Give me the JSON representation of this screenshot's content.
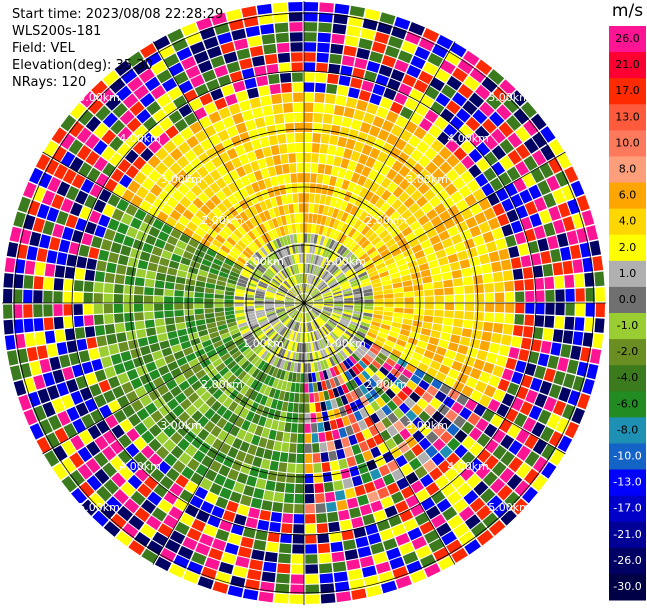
{
  "header": {
    "start_time": "Start time: 2023/08/08 22:28:29",
    "instrument": "WLS200s-181",
    "field": "Field: VEL",
    "elevation": "Elevation(deg): 35.30",
    "nrays": "NRays: 120"
  },
  "colorbar": {
    "unit": "m/s",
    "levels": [
      {
        "label": "26.0",
        "color": "#ff1493"
      },
      {
        "label": "21.0",
        "color": "#ff0033"
      },
      {
        "label": "17.0",
        "color": "#ff2a00"
      },
      {
        "label": "13.0",
        "color": "#ff5a3c"
      },
      {
        "label": "10.0",
        "color": "#ff7a5c"
      },
      {
        "label": "8.0",
        "color": "#ff9e7a"
      },
      {
        "label": "6.0",
        "color": "#ffa500"
      },
      {
        "label": "4.0",
        "color": "#ffd700"
      },
      {
        "label": "2.0",
        "color": "#ffff00"
      },
      {
        "label": "1.0",
        "color": "#b0b0b0"
      },
      {
        "label": "0.0",
        "color": "#707070"
      },
      {
        "label": "-1.0",
        "color": "#9acd32"
      },
      {
        "label": "-2.0",
        "color": "#6b8e23"
      },
      {
        "label": "-4.0",
        "color": "#3c7a1e"
      },
      {
        "label": "-6.0",
        "color": "#228b22"
      },
      {
        "label": "-8.0",
        "color": "#1e90b4"
      },
      {
        "label": "-10.0",
        "color": "#1464c8"
      },
      {
        "label": "-13.0",
        "color": "#0000ff"
      },
      {
        "label": "-17.0",
        "color": "#0000c8"
      },
      {
        "label": "-21.0",
        "color": "#000096"
      },
      {
        "label": "-26.0",
        "color": "#000064"
      },
      {
        "label": "-30.0",
        "color": "#000046"
      }
    ]
  },
  "chart_data": {
    "type": "heatmap",
    "projection": "polar PPI",
    "field": "VEL",
    "units": "m/s",
    "n_rays": 120,
    "range_rings_km": [
      1.0,
      2.0,
      3.0,
      4.0,
      5.0
    ],
    "ring_labels": [
      "1.00km",
      "2.00km",
      "3.00km",
      "4.00km",
      "5.00km"
    ],
    "azimuth_lines_deg": [
      0,
      30,
      60,
      90,
      120,
      150,
      180,
      210,
      240,
      270,
      300,
      330
    ],
    "max_range_km": 5.0,
    "regions": [
      {
        "range_km": [
          0.0,
          1.2
        ],
        "description": "mixed near-zero",
        "dominant_values": [
          0.0,
          1.0,
          2.0,
          -1.0
        ]
      },
      {
        "range_km": [
          1.2,
          3.5
        ],
        "sector_deg": [
          300,
          120
        ],
        "dominant_values": [
          2.0,
          4.0,
          6.0
        ]
      },
      {
        "range_km": [
          1.2,
          3.5
        ],
        "sector_deg": [
          180,
          300
        ],
        "dominant_values": [
          -1.0,
          -2.0,
          -4.0,
          -6.0
        ]
      },
      {
        "range_km": [
          3.5,
          5.0
        ],
        "description": "noise",
        "dominant_values": [
          26.0,
          17.0,
          -13.0,
          -26.0,
          2.0,
          -4.0
        ]
      }
    ]
  }
}
